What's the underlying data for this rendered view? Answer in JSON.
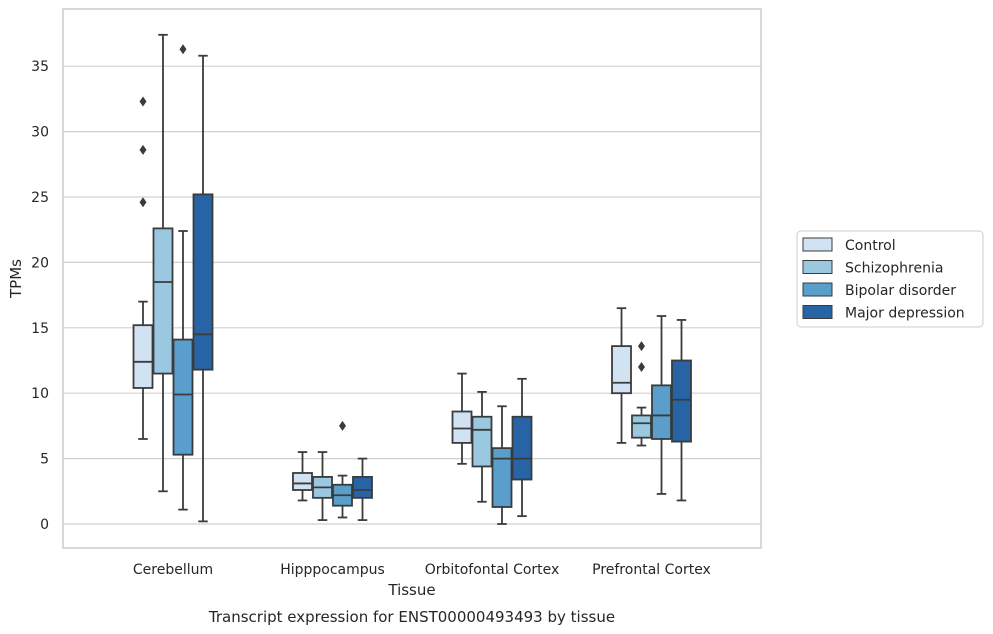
{
  "chart_data": {
    "type": "boxplot",
    "xlabel": "Tissue",
    "ylabel": "TPMs",
    "caption": "Transcript expression for ENST00000493493 by tissue",
    "ylim": [
      -1.8,
      39.5
    ],
    "yticks": [
      0,
      5,
      10,
      15,
      20,
      25,
      30,
      35
    ],
    "grid": "horizontal",
    "legend_position": "right",
    "categories": [
      "Cerebellum",
      "Hipppocampus",
      "Orbitofontal Cortex",
      "Prefrontal Cortex"
    ],
    "series": [
      {
        "name": "Control",
        "color": "#d1e2f2",
        "boxes": [
          {
            "whislo": 6.5,
            "q1": 10.4,
            "med": 12.4,
            "q3": 15.2,
            "whishi": 17.0,
            "fliers": [
              24.6,
              28.6,
              32.3
            ]
          },
          {
            "whislo": 1.8,
            "q1": 2.6,
            "med": 3.1,
            "q3": 3.9,
            "whishi": 5.5,
            "fliers": []
          },
          {
            "whislo": 4.6,
            "q1": 6.2,
            "med": 7.3,
            "q3": 8.6,
            "whishi": 11.5,
            "fliers": []
          },
          {
            "whislo": 6.2,
            "q1": 10.0,
            "med": 10.8,
            "q3": 13.6,
            "whishi": 16.5,
            "fliers": []
          }
        ]
      },
      {
        "name": "Schizophrenia",
        "color": "#9ac8e0",
        "boxes": [
          {
            "whislo": 2.5,
            "q1": 11.5,
            "med": 18.5,
            "q3": 22.6,
            "whishi": 37.4,
            "fliers": []
          },
          {
            "whislo": 0.3,
            "q1": 2.0,
            "med": 2.8,
            "q3": 3.6,
            "whishi": 5.5,
            "fliers": []
          },
          {
            "whislo": 1.7,
            "q1": 4.4,
            "med": 7.2,
            "q3": 8.2,
            "whishi": 10.1,
            "fliers": []
          },
          {
            "whislo": 6.0,
            "q1": 6.6,
            "med": 7.7,
            "q3": 8.3,
            "whishi": 8.9,
            "fliers": [
              12.0,
              13.6
            ]
          }
        ]
      },
      {
        "name": "Bipolar disorder",
        "color": "#5a9ecb",
        "boxes": [
          {
            "whislo": 1.1,
            "q1": 5.3,
            "med": 9.9,
            "q3": 14.1,
            "whishi": 22.4,
            "fliers": [
              36.3
            ]
          },
          {
            "whislo": 0.5,
            "q1": 1.4,
            "med": 2.2,
            "q3": 3.0,
            "whishi": 3.7,
            "fliers": [
              7.5
            ]
          },
          {
            "whislo": 0.0,
            "q1": 1.3,
            "med": 5.0,
            "q3": 5.8,
            "whishi": 9.0,
            "fliers": []
          },
          {
            "whislo": 2.3,
            "q1": 6.5,
            "med": 8.3,
            "q3": 10.6,
            "whishi": 15.9,
            "fliers": []
          }
        ]
      },
      {
        "name": "Major depression",
        "color": "#2764a6",
        "boxes": [
          {
            "whislo": 0.2,
            "q1": 11.8,
            "med": 14.5,
            "q3": 25.2,
            "whishi": 35.8,
            "fliers": []
          },
          {
            "whislo": 0.3,
            "q1": 2.0,
            "med": 2.6,
            "q3": 3.6,
            "whishi": 5.0,
            "fliers": []
          },
          {
            "whislo": 0.6,
            "q1": 3.4,
            "med": 5.0,
            "q3": 8.2,
            "whishi": 11.1,
            "fliers": []
          },
          {
            "whislo": 1.8,
            "q1": 6.3,
            "med": 9.5,
            "q3": 12.5,
            "whishi": 15.6,
            "fliers": []
          }
        ]
      }
    ]
  }
}
